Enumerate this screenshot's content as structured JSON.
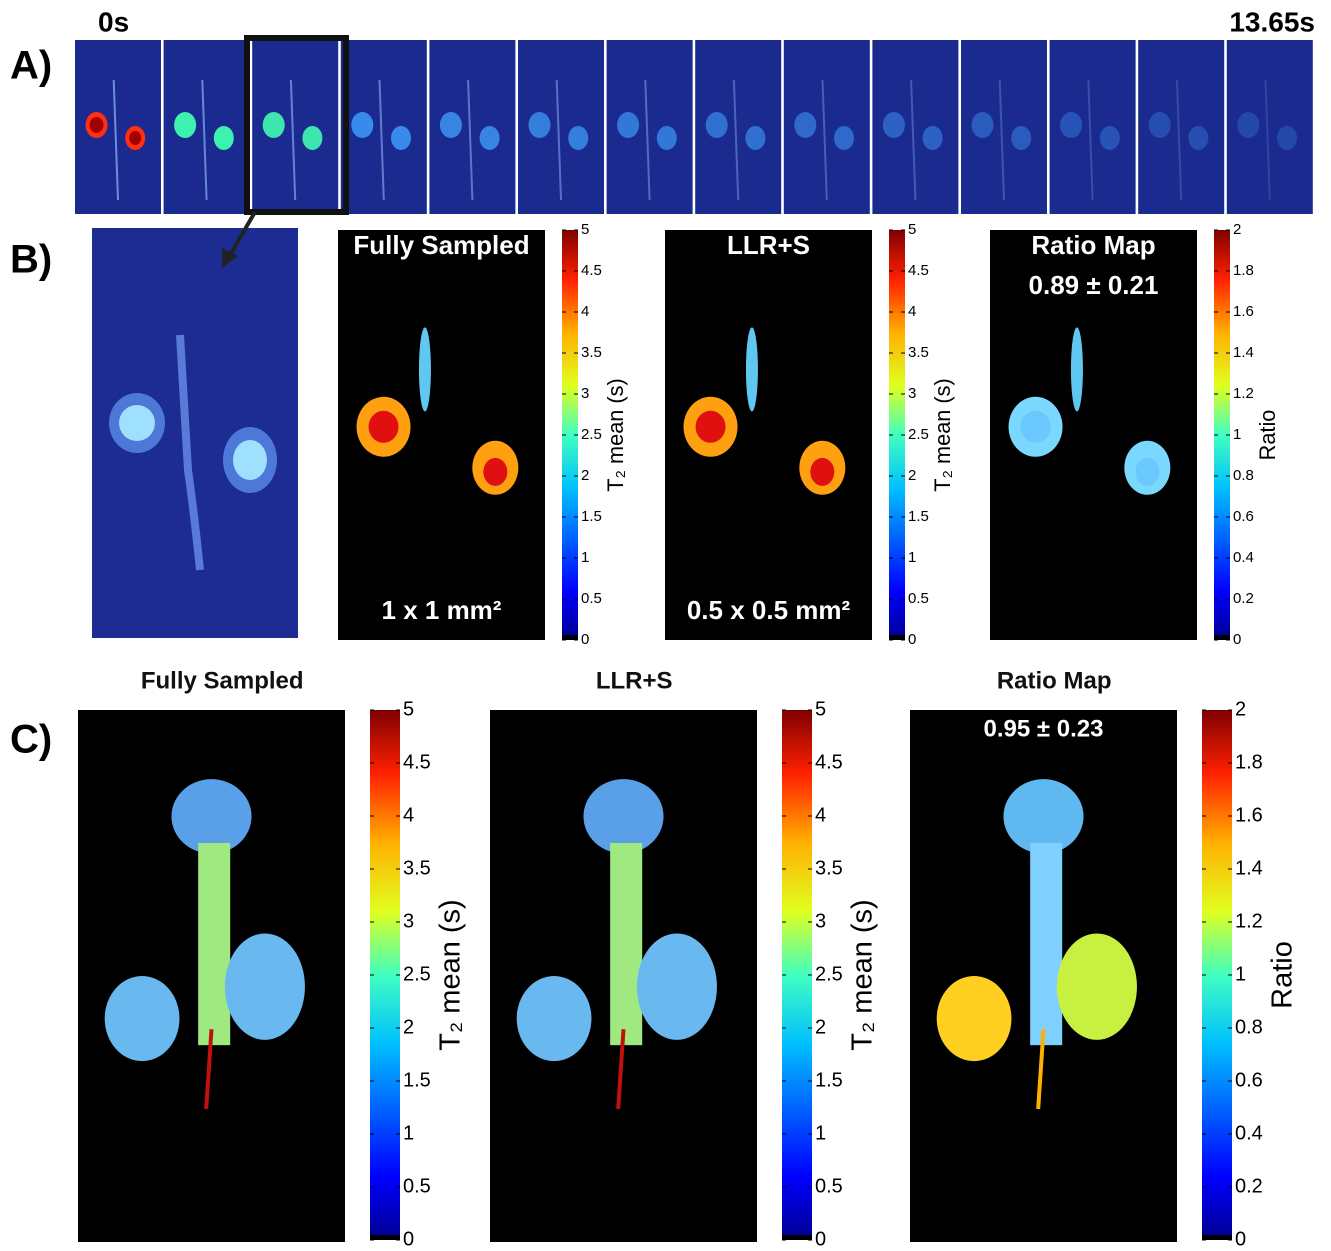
{
  "panels": {
    "A": {
      "label": "A)",
      "start_time": "0s",
      "end_time": "13.65s"
    },
    "B": {
      "label": "B)",
      "maps": [
        {
          "title": "Fully Sampled",
          "annotation": "1 x 1 mm²",
          "colorbar": {
            "label": "T₂ mean (s)",
            "ticks": [
              0,
              0.5,
              1,
              1.5,
              2,
              2.5,
              3,
              3.5,
              4,
              4.5,
              5
            ]
          }
        },
        {
          "title": "LLR+S",
          "annotation": "0.5 x 0.5 mm²",
          "colorbar": {
            "label": "T₂ mean (s)",
            "ticks": [
              0,
              0.5,
              1,
              1.5,
              2,
              2.5,
              3,
              3.5,
              4,
              4.5,
              5
            ]
          }
        },
        {
          "title": "Ratio Map",
          "annotation": "0.89 ± 0.21",
          "colorbar": {
            "label": "Ratio",
            "ticks": [
              0,
              0.2,
              0.4,
              0.6,
              0.8,
              1,
              1.2,
              1.4,
              1.6,
              1.8,
              2
            ]
          }
        }
      ]
    },
    "C": {
      "label": "C)",
      "maps": [
        {
          "title": "Fully Sampled",
          "colorbar": {
            "label": "T₂ mean (s)",
            "ticks": [
              0,
              0.5,
              1,
              1.5,
              2,
              2.5,
              3,
              3.5,
              4,
              4.5,
              5
            ]
          }
        },
        {
          "title": "LLR+S",
          "colorbar": {
            "label": "T₂ mean (s)",
            "ticks": [
              0,
              0.5,
              1,
              1.5,
              2,
              2.5,
              3,
              3.5,
              4,
              4.5,
              5
            ]
          }
        },
        {
          "title": "Ratio Map",
          "annotation": "0.95 ± 0.23",
          "colorbar": {
            "label": "Ratio",
            "ticks": [
              0,
              0.2,
              0.4,
              0.6,
              0.8,
              1,
              1.2,
              1.4,
              1.6,
              1.8,
              2
            ]
          }
        }
      ]
    }
  }
}
